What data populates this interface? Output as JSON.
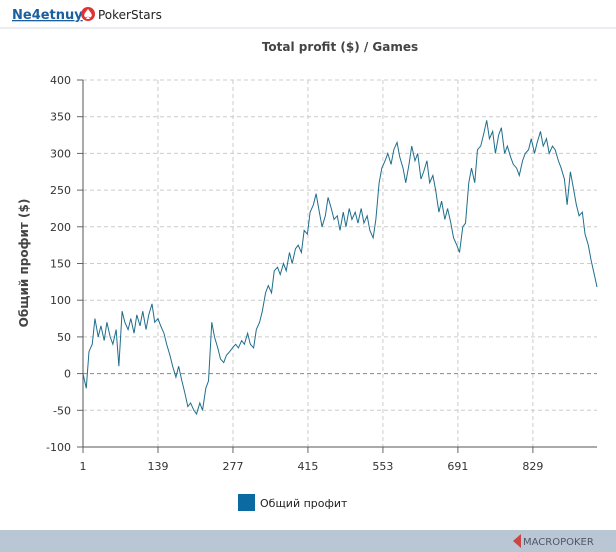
{
  "header": {
    "user": "Ne4etnuy",
    "site": "PokerStars"
  },
  "chart_data": {
    "type": "line",
    "title": "Total profit ($) / Games",
    "y_label": "Общий профит ($)",
    "x": [
      1,
      7,
      12,
      18,
      23,
      29,
      34,
      40,
      45,
      51,
      56,
      62,
      67,
      73,
      78,
      84,
      89,
      95,
      100,
      106,
      111,
      117,
      122,
      128,
      133,
      139,
      144,
      150,
      155,
      161,
      166,
      172,
      177,
      183,
      188,
      194,
      199,
      205,
      210,
      216,
      221,
      227,
      232,
      238,
      243,
      249,
      254,
      260,
      265,
      271,
      276,
      282,
      287,
      293,
      298,
      304,
      309,
      315,
      320,
      326,
      331,
      337,
      342,
      348,
      353,
      359,
      364,
      370,
      375,
      381,
      386,
      392,
      397,
      403,
      408,
      414,
      419,
      425,
      430,
      436,
      441,
      447,
      452,
      458,
      463,
      469,
      474,
      480,
      485,
      491,
      496,
      502,
      507,
      513,
      518,
      524,
      529,
      535,
      540,
      546,
      551,
      557,
      562,
      568,
      573,
      579,
      584,
      590,
      595,
      601,
      606,
      612,
      617,
      623,
      628,
      634,
      639,
      645,
      650,
      656,
      661,
      667,
      672,
      678,
      683,
      689,
      694,
      700,
      705,
      711,
      716,
      722,
      727,
      733,
      738,
      744,
      749,
      755,
      760,
      766,
      771,
      777,
      782,
      788,
      793,
      799,
      804,
      810,
      815,
      821,
      826,
      832,
      837,
      843,
      848,
      854,
      859,
      865,
      870,
      876,
      881,
      887,
      892,
      898,
      903,
      909,
      914,
      920,
      925,
      931,
      936,
      942,
      947
    ],
    "series": [
      {
        "name": "Общий профит",
        "color": "#1f6e8c",
        "legend_color": "#0b6aa2",
        "values": [
          0,
          -20,
          30,
          40,
          75,
          50,
          65,
          45,
          70,
          50,
          40,
          60,
          10,
          85,
          70,
          60,
          75,
          55,
          80,
          65,
          85,
          60,
          80,
          95,
          70,
          75,
          65,
          55,
          40,
          25,
          10,
          -5,
          10,
          -10,
          -25,
          -45,
          -40,
          -50,
          -55,
          -40,
          -50,
          -20,
          -10,
          70,
          50,
          35,
          20,
          15,
          25,
          30,
          35,
          40,
          35,
          45,
          40,
          55,
          40,
          35,
          60,
          70,
          85,
          110,
          120,
          110,
          140,
          145,
          135,
          150,
          140,
          165,
          150,
          170,
          175,
          165,
          195,
          190,
          220,
          230,
          245,
          220,
          200,
          215,
          240,
          225,
          210,
          215,
          195,
          220,
          200,
          225,
          210,
          220,
          205,
          225,
          205,
          215,
          195,
          185,
          210,
          260,
          280,
          290,
          300,
          285,
          305,
          315,
          295,
          280,
          260,
          285,
          310,
          290,
          300,
          265,
          275,
          290,
          260,
          270,
          250,
          220,
          235,
          210,
          225,
          205,
          185,
          175,
          165,
          200,
          205,
          260,
          280,
          260,
          305,
          310,
          325,
          345,
          320,
          330,
          300,
          325,
          335,
          300,
          310,
          295,
          285,
          280,
          270,
          290,
          300,
          305,
          320,
          300,
          315,
          330,
          310,
          320,
          300,
          310,
          305,
          290,
          280,
          265,
          230,
          275,
          255,
          230,
          215,
          220,
          190,
          175,
          155,
          135,
          118
        ]
      }
    ],
    "xlim": [
      1,
      947
    ],
    "xticks": [
      1,
      139,
      277,
      415,
      553,
      691,
      829
    ],
    "ylim": [
      -100,
      400
    ],
    "yticks": [
      -100,
      -50,
      0,
      50,
      100,
      150,
      200,
      250,
      300,
      350,
      400
    ],
    "grid": true
  },
  "footer": {
    "brand": "MACROPOKER"
  }
}
